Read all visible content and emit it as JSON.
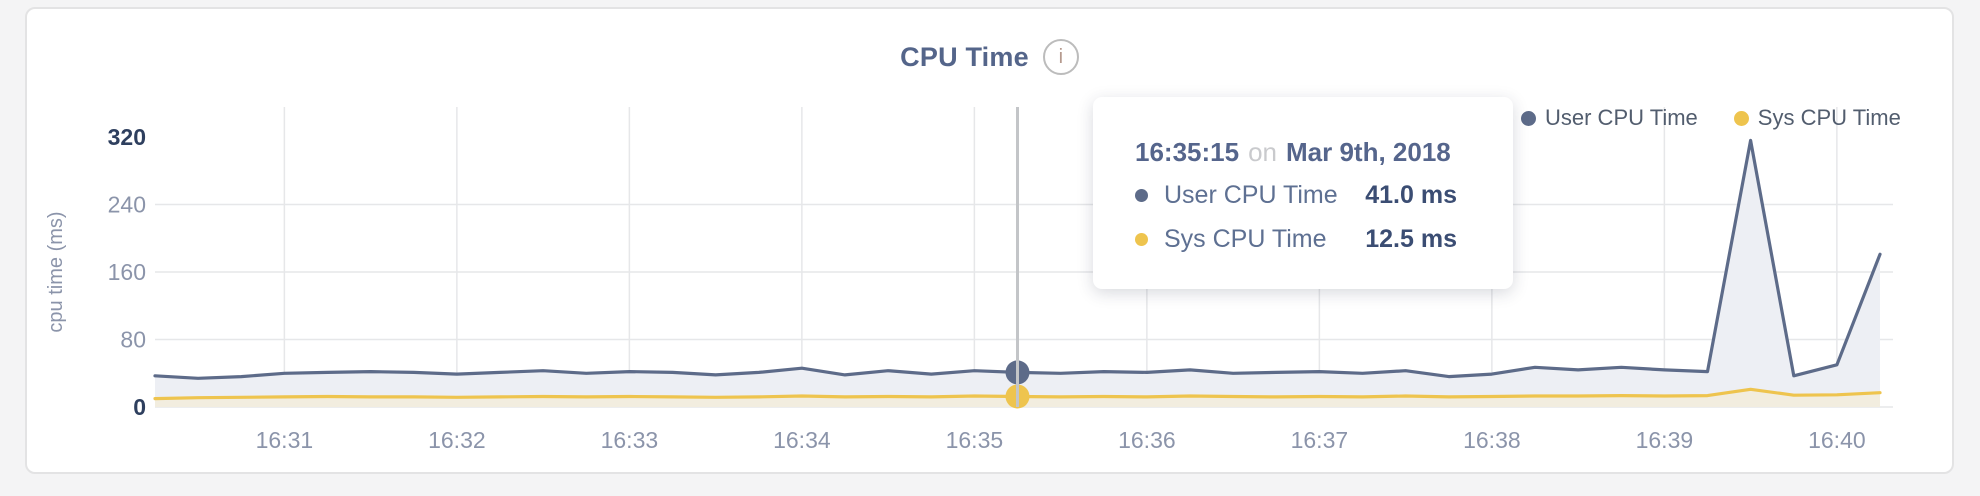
{
  "card": {
    "title": "CPU Time",
    "info_icon_glyph": "i"
  },
  "legend": [
    {
      "label": "User CPU Time",
      "color": "#5d6b89"
    },
    {
      "label": "Sys CPU Time",
      "color": "#eec44e"
    }
  ],
  "tooltip": {
    "time": "16:35:15",
    "on_word": "on",
    "date": "Mar 9th, 2018",
    "rows": [
      {
        "label": "User CPU Time",
        "value": "41.0 ms",
        "color": "#5d6b89"
      },
      {
        "label": "Sys CPU Time",
        "value": "12.5 ms",
        "color": "#eec44e"
      }
    ]
  },
  "chart_data": {
    "type": "area",
    "title": "CPU Time",
    "xlabel": "",
    "ylabel": "cpu time (ms)",
    "ylim": [
      0,
      320
    ],
    "yticks": [
      0,
      80,
      160,
      240,
      320
    ],
    "x_tick_labels": [
      "16:31",
      "16:32",
      "16:33",
      "16:34",
      "16:35",
      "16:36",
      "16:37",
      "16:38",
      "16:39",
      "16:40"
    ],
    "grid": true,
    "legend_position": "top-right",
    "grid_color": "#e6e7e9",
    "tick_color": "#8b94aa",
    "tick_color_minmax": "#2e3f5e",
    "selection_line_color": "#c3c5c8",
    "timestamps": [
      "16:30:15",
      "16:30:30",
      "16:30:45",
      "16:31:00",
      "16:31:15",
      "16:31:30",
      "16:31:45",
      "16:32:00",
      "16:32:15",
      "16:32:30",
      "16:32:45",
      "16:33:00",
      "16:33:15",
      "16:33:30",
      "16:33:45",
      "16:34:00",
      "16:34:15",
      "16:34:30",
      "16:34:45",
      "16:35:00",
      "16:35:15",
      "16:35:30",
      "16:35:45",
      "16:36:00",
      "16:36:15",
      "16:36:30",
      "16:36:45",
      "16:37:00",
      "16:37:15",
      "16:37:30",
      "16:37:45",
      "16:38:00",
      "16:38:15",
      "16:38:30",
      "16:38:45",
      "16:39:00",
      "16:39:15",
      "16:39:30",
      "16:39:45",
      "16:40:00",
      "16:40:15"
    ],
    "series": [
      {
        "name": "User CPU Time",
        "color": "#5d6b89",
        "fill": "#edeff4",
        "values": [
          37,
          34,
          36,
          40,
          41,
          42,
          41,
          39,
          41,
          43,
          40,
          42,
          41,
          38,
          41,
          46,
          38,
          43,
          39,
          43,
          41,
          40,
          42,
          41,
          44,
          40,
          41,
          42,
          40,
          43,
          36,
          39,
          47,
          44,
          47,
          44,
          42,
          316,
          37,
          50,
          181
        ]
      },
      {
        "name": "Sys CPU Time",
        "color": "#eec44e",
        "fill": "#f2eddf",
        "values": [
          10,
          11,
          11.5,
          12,
          12.5,
          12,
          12,
          11.5,
          12,
          12.5,
          12,
          12.5,
          12,
          11.5,
          12,
          13,
          12,
          12.5,
          12,
          13,
          12.5,
          12,
          12.5,
          12,
          13,
          12.5,
          12,
          12.5,
          12,
          13,
          12,
          12.5,
          13,
          13,
          13.5,
          13,
          13.5,
          21,
          14,
          14.5,
          17
        ]
      }
    ],
    "selected_index": 20,
    "selected_point": {
      "timestamp": "16:35:15",
      "date": "Mar 9th, 2018",
      "user_cpu_time_ms": 41.0,
      "sys_cpu_time_ms": 12.5
    }
  }
}
